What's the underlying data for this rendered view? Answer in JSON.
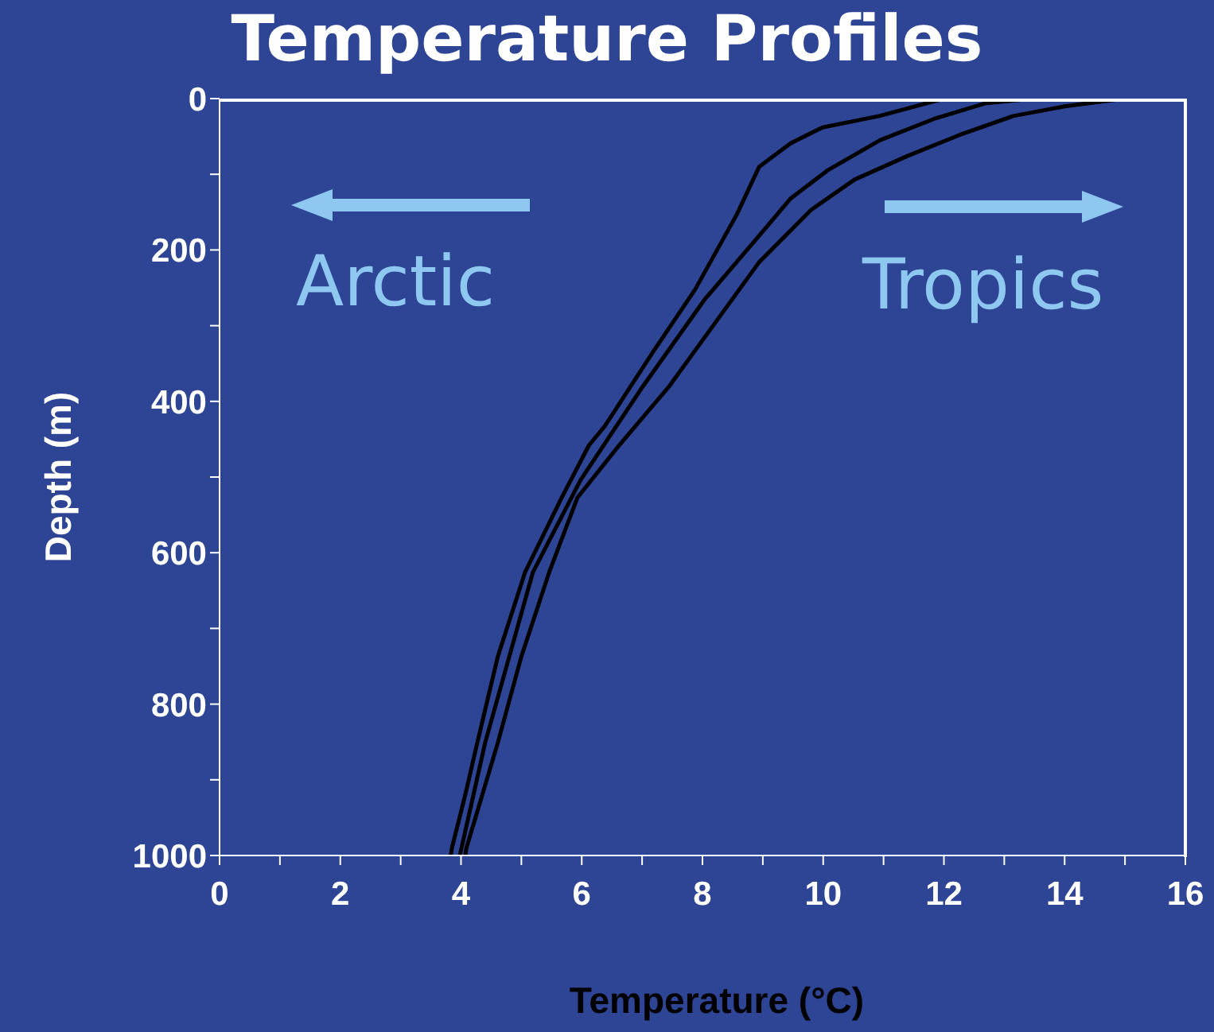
{
  "chart_data": {
    "type": "line",
    "title": "Temperature Profiles",
    "xlabel": "Temperature (°C)",
    "ylabel": "Depth (m)",
    "xlim": [
      0,
      16
    ],
    "xticks": [
      0,
      {
        "value": 1,
        "label": null
      },
      2,
      {
        "value": 3,
        "label": null
      },
      4,
      {
        "value": 5,
        "label": null
      },
      6,
      {
        "value": 7,
        "label": null
      },
      8,
      {
        "value": 9,
        "label": null
      },
      10,
      {
        "value": 11,
        "label": null
      },
      12,
      {
        "value": 13,
        "label": null
      },
      14,
      {
        "value": 15,
        "label": null
      },
      16
    ],
    "ylim": [
      1000,
      0
    ],
    "yticks": [
      0,
      {
        "value": 100,
        "label": null
      },
      200,
      {
        "value": 300,
        "label": null
      },
      400,
      {
        "value": 500,
        "label": null
      },
      600,
      {
        "value": 700,
        "label": null
      },
      800,
      {
        "value": 900,
        "label": null
      },
      1000
    ],
    "grid": false,
    "marker": "none",
    "line_style": "solid",
    "annotations": [
      "Arctic",
      "Tropics"
    ],
    "series": [
      {
        "color": "#000000",
        "x": [
          12.0,
          10.93,
          9.99,
          9.46,
          8.94,
          8.57,
          7.88,
          7.17,
          6.38,
          6.12,
          5.67,
          5.06,
          4.61,
          4.27,
          4.07,
          3.85,
          3.83
        ],
        "values": [
          0,
          23,
          38,
          59,
          90,
          153,
          252,
          336,
          433,
          458,
          527,
          626,
          737,
          851,
          920,
          990,
          1000
        ]
      },
      {
        "color": "#000000",
        "x": [
          13.5,
          12.7,
          11.83,
          10.94,
          10.07,
          9.46,
          8.94,
          8.04,
          6.98,
          5.98,
          5.19,
          4.4,
          3.98
        ],
        "values": [
          0,
          6,
          27,
          55,
          95,
          132,
          181,
          265,
          384,
          504,
          626,
          851,
          1000
        ]
      },
      {
        "color": "#000000",
        "x": [
          15.0,
          14.02,
          13.15,
          12.26,
          11.39,
          10.52,
          9.8,
          8.94,
          8.04,
          7.45,
          6.62,
          5.93,
          5.46,
          5.0,
          4.61,
          4.09,
          4.07
        ],
        "values": [
          0,
          10,
          23,
          48,
          76,
          107,
          147,
          216,
          315,
          380,
          458,
          527,
          626,
          737,
          851,
          990,
          1000
        ]
      }
    ]
  }
}
